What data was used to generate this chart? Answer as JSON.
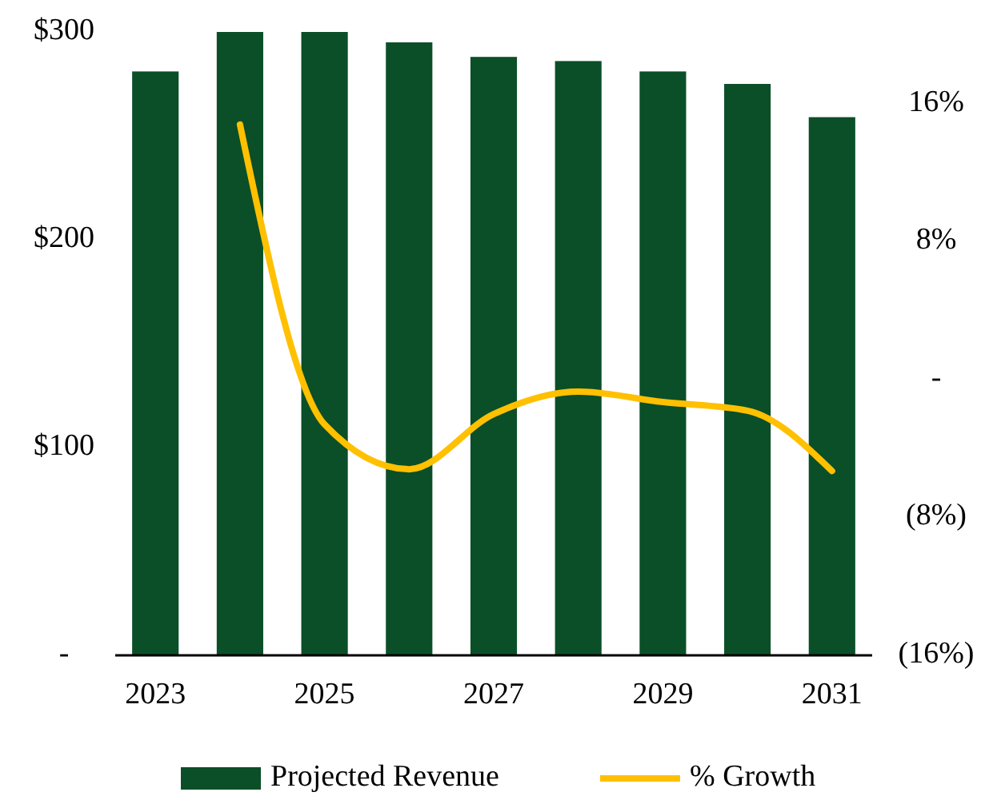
{
  "chart_data": {
    "type": "bar",
    "categories": [
      "2023",
      null,
      "2025",
      null,
      "2027",
      null,
      "2029",
      null,
      "2031"
    ],
    "series": [
      {
        "name": "Projected Revenue",
        "color": "#0a4f28",
        "values": [
          281,
          300,
          300,
          295,
          288,
          286,
          281,
          275,
          259
        ]
      },
      {
        "name": "% Growth",
        "type": "line",
        "axis": "y2",
        "color": "#ffc000",
        "values": [
          null,
          14.8,
          -2.6,
          -5.2,
          -2.0,
          -0.7,
          -1.3,
          -1.8,
          -5.3
        ]
      }
    ],
    "ylim": [
      0,
      300
    ],
    "yticks": [
      {
        "value": 0,
        "label": "-"
      },
      {
        "value": 100,
        "label": "$100"
      },
      {
        "value": 200,
        "label": "$200"
      },
      {
        "value": 300,
        "label": "$300"
      }
    ],
    "y2lim": [
      -16,
      16
    ],
    "y2ticks": [
      {
        "value": -16,
        "label": "(16%)"
      },
      {
        "value": -8,
        "label": "(8%)"
      },
      {
        "value": 0,
        "label": "-"
      },
      {
        "value": 8,
        "label": "8%"
      },
      {
        "value": 16,
        "label": "16%"
      }
    ],
    "grid": false,
    "legend": "bottom"
  }
}
